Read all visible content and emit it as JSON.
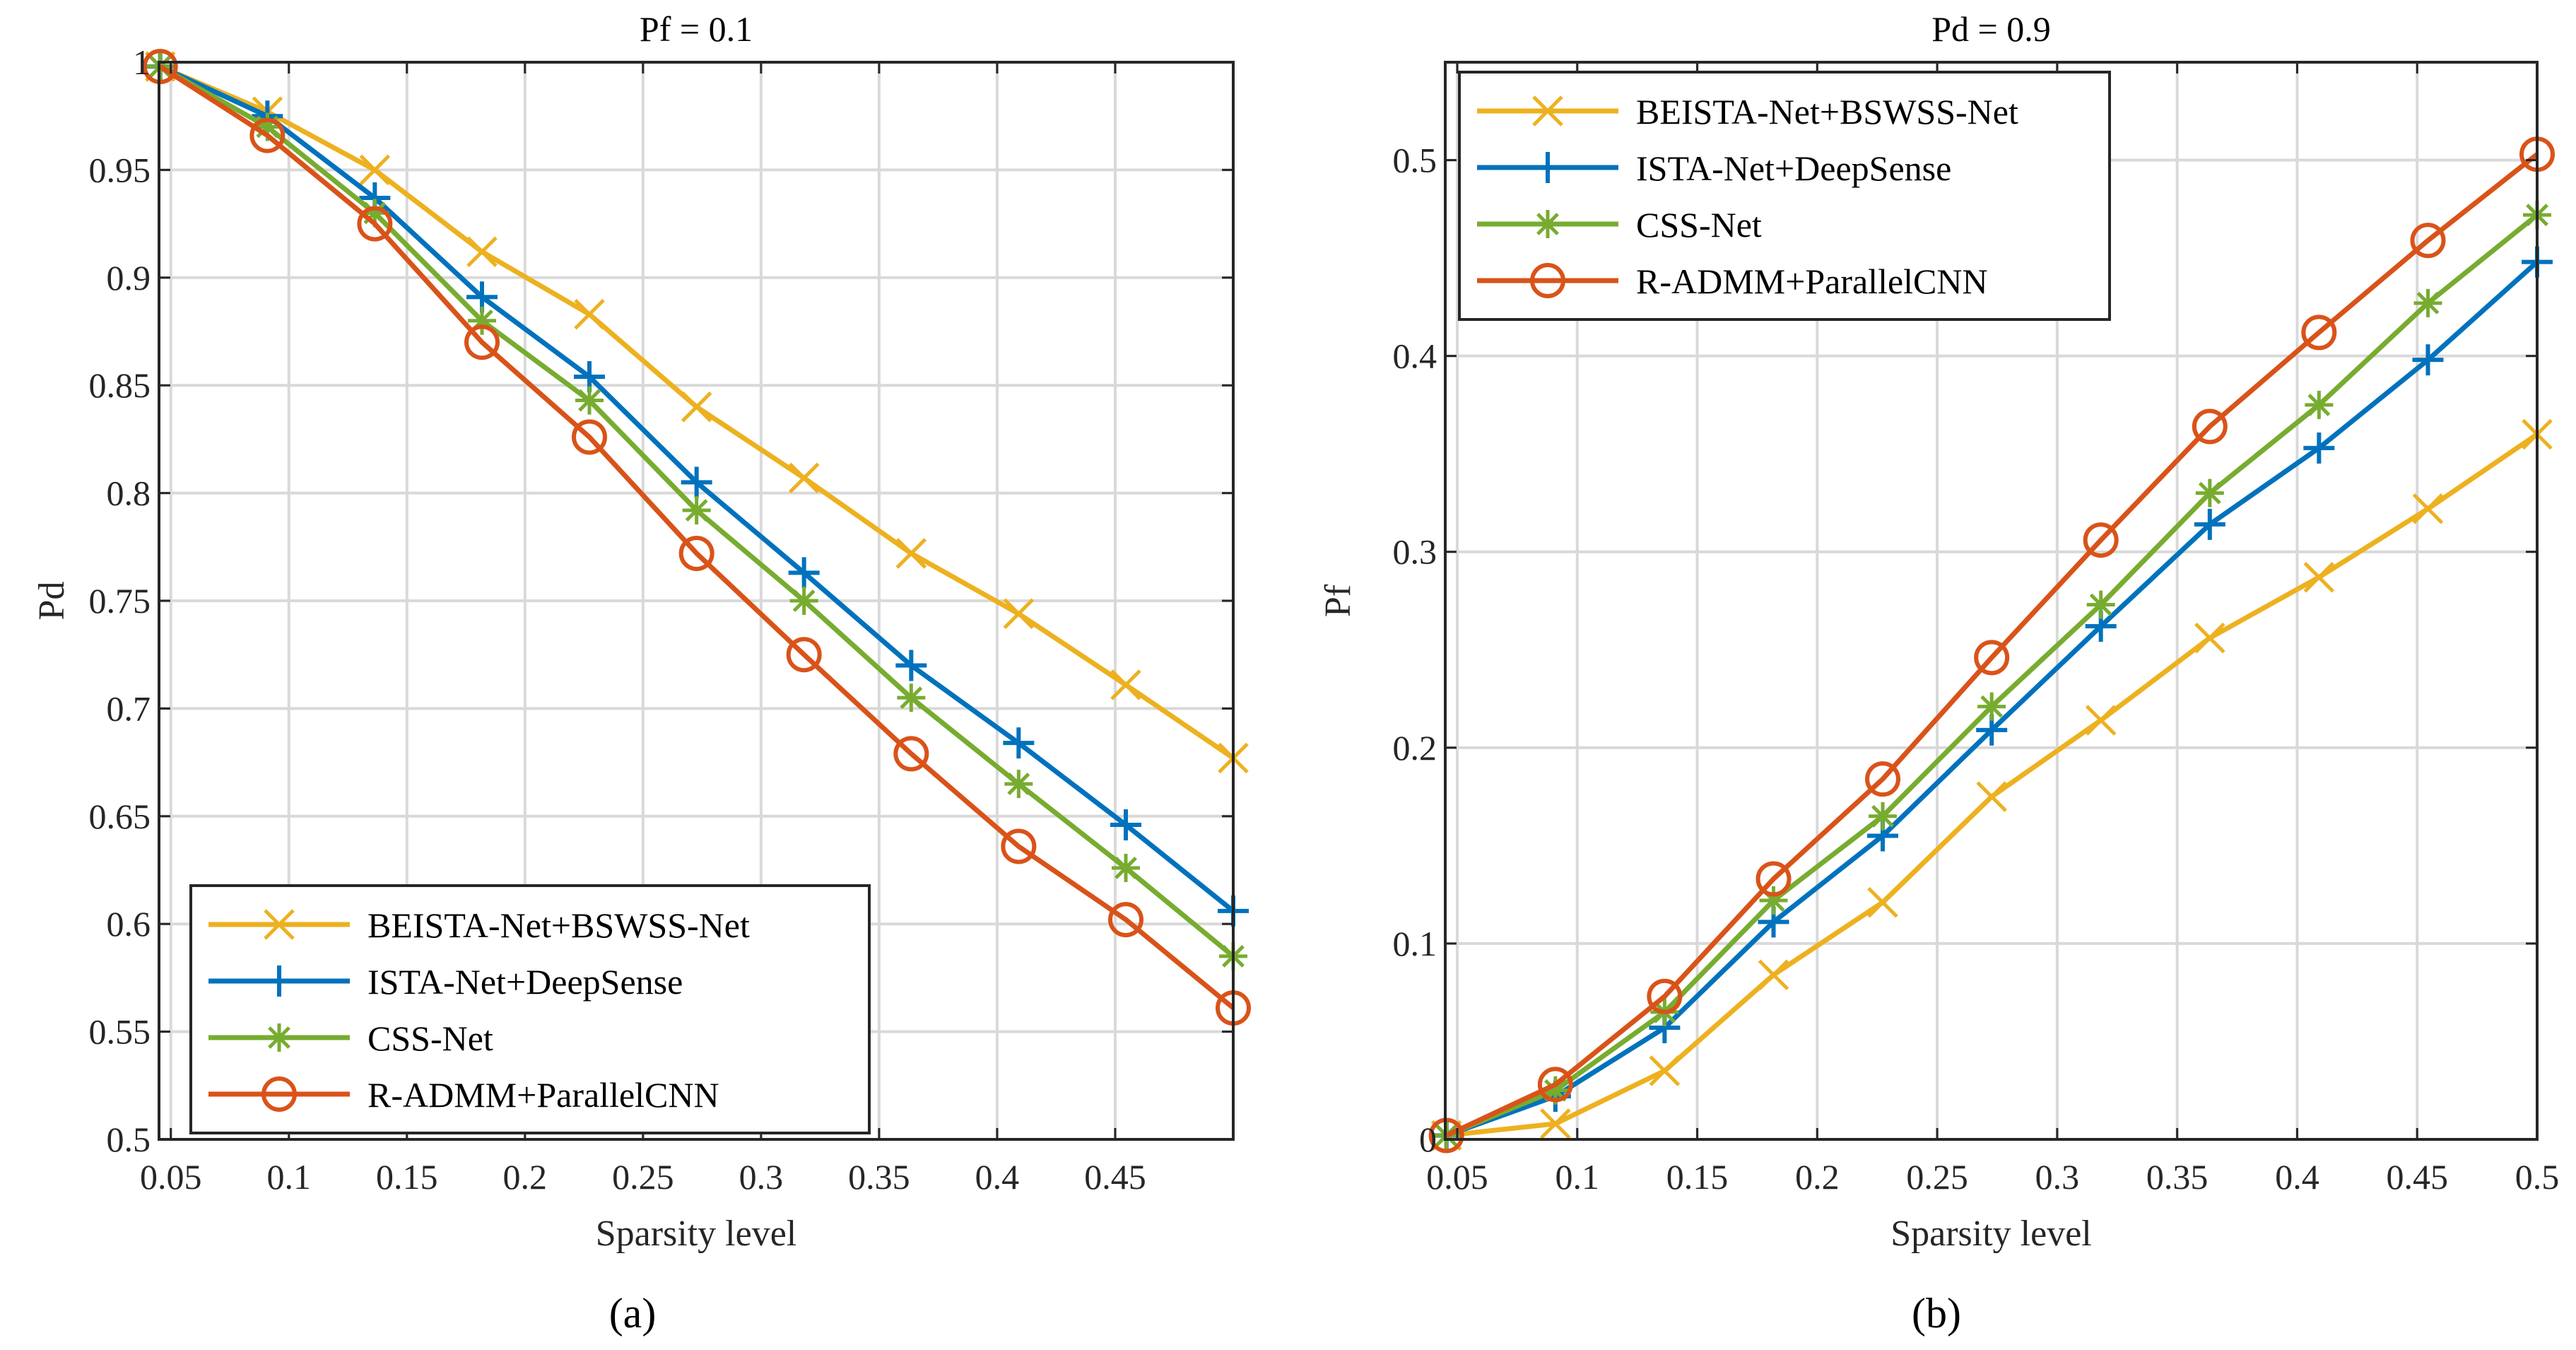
{
  "figure": {
    "panel_a_label": "(a)",
    "panel_b_label": "(b)"
  },
  "colors": {
    "beista": "#EDB120",
    "ista": "#0072BD",
    "css": "#77AC30",
    "radmm": "#D95319",
    "grid": "#d9d9d9",
    "axis": "#262626"
  },
  "icons": {
    "beista": "x-marker",
    "ista": "plus-marker",
    "css": "asterisk-marker",
    "radmm": "circle-marker"
  },
  "chart_data": [
    {
      "type": "line",
      "title": "Pf = 0.1",
      "xlabel": "Sparsity level",
      "ylabel": "Pd",
      "xlim": [
        0.045,
        0.5
      ],
      "ylim": [
        0.5,
        1.0
      ],
      "xticks": [
        0.05,
        0.1,
        0.15,
        0.2,
        0.25,
        0.3,
        0.35,
        0.4,
        0.45
      ],
      "xtick_labels": [
        "0.05",
        "0.1",
        "0.15",
        "0.2",
        "0.25",
        "0.3",
        "0.35",
        "0.4",
        "0.45"
      ],
      "yticks": [
        0.5,
        0.55,
        0.6,
        0.65,
        0.7,
        0.75,
        0.8,
        0.85,
        0.9,
        0.95,
        1.0
      ],
      "ytick_labels": [
        "0.5",
        "0.55",
        "0.6",
        "0.65",
        "0.7",
        "0.75",
        "0.8",
        "0.85",
        "0.9",
        "0.95",
        "1"
      ],
      "grid": true,
      "legend_position": "bottom-left",
      "x": [
        0.0455,
        0.0909,
        0.1364,
        0.1818,
        0.2273,
        0.2727,
        0.3182,
        0.3636,
        0.4091,
        0.4545,
        0.5
      ],
      "series": [
        {
          "name": "BEISTA-Net+BSWSS-Net",
          "key": "beista",
          "marker": "x",
          "values": [
            0.998,
            0.977,
            0.95,
            0.912,
            0.883,
            0.84,
            0.807,
            0.772,
            0.744,
            0.711,
            0.677
          ]
        },
        {
          "name": "ISTA-Net+DeepSense",
          "key": "ista",
          "marker": "+",
          "values": [
            0.998,
            0.975,
            0.937,
            0.891,
            0.854,
            0.805,
            0.763,
            0.72,
            0.684,
            0.646,
            0.606
          ]
        },
        {
          "name": "CSS-Net",
          "key": "css",
          "marker": "*",
          "values": [
            0.998,
            0.97,
            0.93,
            0.88,
            0.843,
            0.792,
            0.75,
            0.705,
            0.665,
            0.626,
            0.585
          ]
        },
        {
          "name": "R-ADMM+ParallelCNN",
          "key": "radmm",
          "marker": "o",
          "values": [
            0.998,
            0.966,
            0.925,
            0.87,
            0.826,
            0.772,
            0.725,
            0.679,
            0.636,
            0.602,
            0.561
          ]
        }
      ]
    },
    {
      "type": "line",
      "title": "Pd = 0.9",
      "xlabel": "Sparsity level",
      "ylabel": "Pf",
      "xlim": [
        0.045,
        0.5
      ],
      "ylim": [
        0,
        0.55
      ],
      "xticks": [
        0.05,
        0.1,
        0.15,
        0.2,
        0.25,
        0.3,
        0.35,
        0.4,
        0.45,
        0.5
      ],
      "xtick_labels": [
        "0.05",
        "0.1",
        "0.15",
        "0.2",
        "0.25",
        "0.3",
        "0.35",
        "0.4",
        "0.45",
        "0.5"
      ],
      "yticks": [
        0,
        0.1,
        0.2,
        0.3,
        0.4,
        0.5
      ],
      "ytick_labels": [
        "0",
        "0.1",
        "0.2",
        "0.3",
        "0.4",
        "0.5"
      ],
      "grid": true,
      "legend_position": "top-left",
      "x": [
        0.0455,
        0.0909,
        0.1364,
        0.1818,
        0.2273,
        0.2727,
        0.3182,
        0.3636,
        0.4091,
        0.4545,
        0.5
      ],
      "series": [
        {
          "name": "BEISTA-Net+BSWSS-Net",
          "key": "beista",
          "marker": "x",
          "values": [
            0.002,
            0.008,
            0.035,
            0.084,
            0.121,
            0.175,
            0.214,
            0.256,
            0.287,
            0.322,
            0.36
          ]
        },
        {
          "name": "ISTA-Net+DeepSense",
          "key": "ista",
          "marker": "+",
          "values": [
            0.002,
            0.022,
            0.057,
            0.111,
            0.155,
            0.209,
            0.262,
            0.314,
            0.353,
            0.398,
            0.448
          ]
        },
        {
          "name": "CSS-Net",
          "key": "css",
          "marker": "*",
          "values": [
            0.002,
            0.025,
            0.065,
            0.122,
            0.165,
            0.221,
            0.273,
            0.33,
            0.375,
            0.427,
            0.472
          ]
        },
        {
          "name": "R-ADMM+ParallelCNN",
          "key": "radmm",
          "marker": "o",
          "values": [
            0.002,
            0.028,
            0.073,
            0.133,
            0.184,
            0.246,
            0.306,
            0.364,
            0.412,
            0.459,
            0.503
          ]
        }
      ]
    }
  ]
}
